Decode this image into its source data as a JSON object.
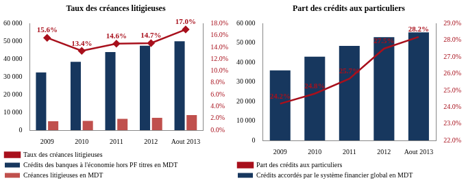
{
  "chart_data": [
    {
      "type": "bar",
      "title": "Taux des créances litigieuses",
      "categories": [
        "2009",
        "2010",
        "2011",
        "2012",
        "Aout 2013"
      ],
      "series": [
        {
          "name": "Crédits des banques à l'économie hors PF titres en MDT",
          "type": "bar",
          "color": "#17375e",
          "values": [
            32500,
            38500,
            44000,
            47500,
            50000
          ]
        },
        {
          "name": "Créances litigieuses en MDT",
          "type": "bar",
          "color": "#c0504d",
          "values": [
            5000,
            5200,
            6400,
            6900,
            8500
          ]
        },
        {
          "name": "Taux des créances litigieuses",
          "type": "line",
          "axis": "y2",
          "color": "#a8101c",
          "marker": "diamond",
          "data_labels": true,
          "values": [
            15.6,
            13.4,
            14.6,
            14.7,
            17.0
          ],
          "value_labels": [
            "15.6%",
            "13.4%",
            "14.6%",
            "14.7%",
            "17.0%"
          ]
        }
      ],
      "ylim": [
        0,
        60000
      ],
      "yticks": [
        0,
        {
          "value": 10000,
          "label": "10 000"
        },
        {
          "value": 20000,
          "label": "20 000"
        },
        {
          "value": 30000,
          "label": "30 000"
        },
        {
          "value": 40000,
          "label": "40 000"
        },
        {
          "value": 50000,
          "label": "50 000"
        },
        {
          "value": 60000,
          "label": "60 000"
        }
      ],
      "y2lim": [
        0,
        18
      ],
      "y2ticks": [
        {
          "value": 0,
          "label": "0.0%"
        },
        {
          "value": 2,
          "label": "2.0%"
        },
        {
          "value": 4,
          "label": "4.0%"
        },
        {
          "value": 6,
          "label": "6.0%"
        },
        {
          "value": 8,
          "label": "8.0%"
        },
        {
          "value": 10,
          "label": "10.0%"
        },
        {
          "value": 12,
          "label": "12.0%"
        },
        {
          "value": 14,
          "label": "14.0%"
        },
        {
          "value": 16,
          "label": "16.0%"
        },
        {
          "value": 18,
          "label": "18.0%"
        }
      ],
      "grid": false,
      "legend": "bottom"
    },
    {
      "type": "bar",
      "title": "Part des crédits aux particuliers",
      "categories": [
        "2009",
        "2010",
        "2011",
        "2012",
        "Aout 2013"
      ],
      "series": [
        {
          "name": "Crédits accordés par le système financier global en MDT",
          "type": "bar",
          "color": "#17375e",
          "values": [
            36000,
            43000,
            48500,
            53000,
            55500
          ]
        },
        {
          "name": "Part des crédits aux particuliers",
          "type": "line",
          "axis": "y2",
          "color": "#a8101c",
          "marker": "none",
          "data_labels": true,
          "values": [
            24.2,
            24.8,
            25.7,
            27.5,
            28.2
          ],
          "value_labels": [
            "24.2%",
            "24.8%",
            "25.7%",
            "27.5%",
            "28.2%"
          ]
        }
      ],
      "ylim": [
        0,
        60000
      ],
      "yticks": [
        0,
        {
          "value": 10000,
          "label": "10 000"
        },
        {
          "value": 20000,
          "label": "20 000"
        },
        {
          "value": 30000,
          "label": "30 000"
        },
        {
          "value": 40000,
          "label": "40 000"
        },
        {
          "value": 50000,
          "label": "50 000"
        },
        {
          "value": 60000,
          "label": "60 000"
        }
      ],
      "y2lim": [
        22,
        29
      ],
      "y2ticks": [
        {
          "value": 22,
          "label": "22.0%"
        },
        {
          "value": 23,
          "label": "23.0%"
        },
        {
          "value": 24,
          "label": "24.0%"
        },
        {
          "value": 25,
          "label": "25.0%"
        },
        {
          "value": 26,
          "label": "26.0%"
        },
        {
          "value": 27,
          "label": "27.0%"
        },
        {
          "value": 28,
          "label": "28.0%"
        },
        {
          "value": 29,
          "label": "29.0%"
        }
      ],
      "grid": false,
      "legend": "bottom"
    }
  ]
}
